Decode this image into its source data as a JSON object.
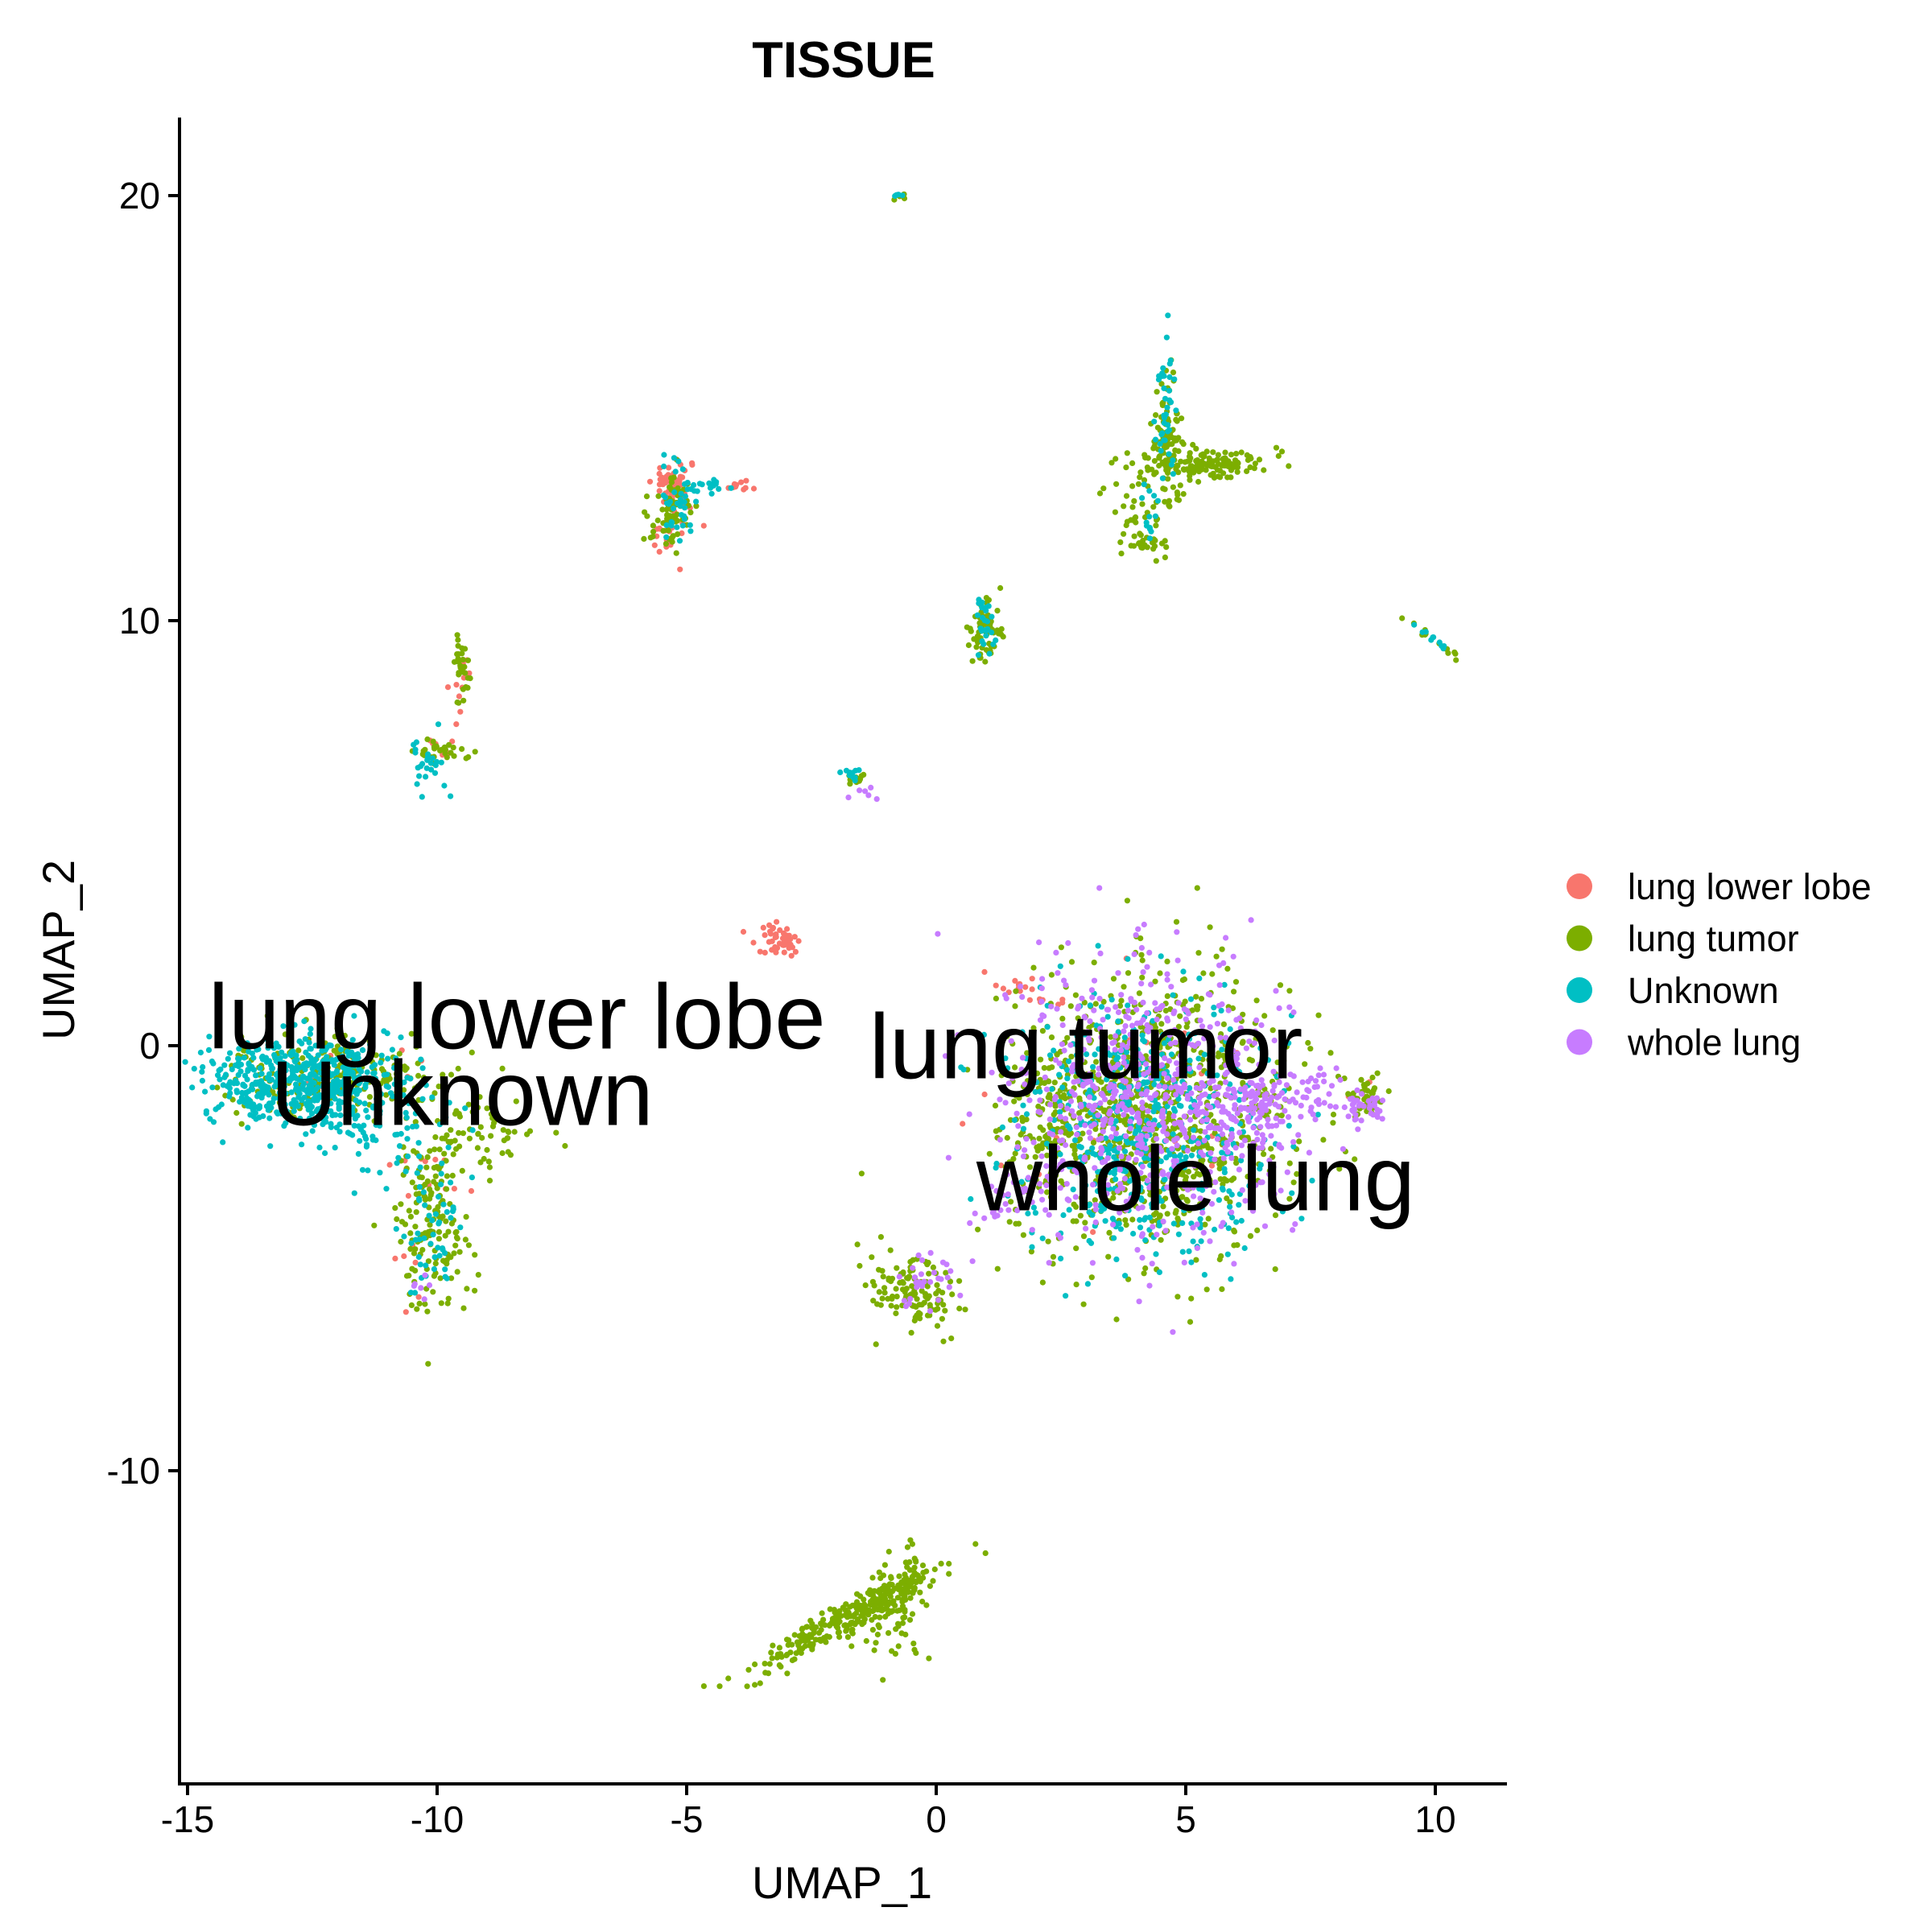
{
  "chart_data": {
    "type": "scatter",
    "title": "TISSUE",
    "xlabel": "UMAP_1",
    "ylabel": "UMAP_2",
    "xlim": [
      -15.2,
      11.5
    ],
    "ylim": [
      -17.3,
      22.0
    ],
    "xticks": [
      -15,
      -10,
      -5,
      0,
      5,
      10
    ],
    "yticks": [
      -10,
      0,
      10,
      20
    ],
    "xtick_labels": [
      "-15",
      "-10",
      "-5",
      "0",
      "5",
      "10"
    ],
    "ytick_labels": [
      "-10",
      "0",
      "10",
      "20"
    ],
    "grid": false,
    "legend": {
      "position": "right",
      "entries": [
        {
          "label": "lung lower lobe",
          "color": "#F8766D"
        },
        {
          "label": "lung tumor",
          "color": "#7CAE00"
        },
        {
          "label": "Unknown",
          "color": "#00BFC4"
        },
        {
          "label": "whole lung",
          "color": "#C77CFF"
        }
      ]
    },
    "annotations": [
      {
        "text": "lung lower lobe",
        "x": -8.4,
        "y": 0.5
      },
      {
        "text": "Unknown",
        "x": -9.5,
        "y": -1.3
      },
      {
        "text": "lung tumor",
        "x": 3.0,
        "y": -0.2
      },
      {
        "text": "whole lung",
        "x": 5.2,
        "y": -3.3
      }
    ],
    "series": [
      {
        "name": "lung lower lobe",
        "color": "#F8766D",
        "clusters": [
          {
            "x": -3.2,
            "y": 2.5,
            "sx": 0.2,
            "sy": 0.25,
            "n": 45,
            "angle": 30
          },
          {
            "x": 1.8,
            "y": 1.3,
            "sx": 0.4,
            "sy": 0.12,
            "n": 20,
            "angle": -25
          },
          {
            "x": -5.3,
            "y": 13.2,
            "sx": 0.2,
            "sy": 0.3,
            "n": 60
          },
          {
            "x": -4.0,
            "y": 13.2,
            "sx": 0.2,
            "sy": 0.08,
            "n": 12
          },
          {
            "x": -5.3,
            "y": 12.0,
            "sx": 0.2,
            "sy": 0.3,
            "n": 20
          },
          {
            "x": -9.5,
            "y": 8.6,
            "sx": 0.1,
            "sy": 0.4,
            "n": 12
          },
          {
            "x": -10.0,
            "y": 7.0,
            "sx": 0.2,
            "sy": 0.15,
            "n": 8
          },
          {
            "x": -12.0,
            "y": -0.5,
            "sx": 1.0,
            "sy": 0.3,
            "n": 15
          },
          {
            "x": -10.2,
            "y": -2.8,
            "sx": 0.5,
            "sy": 0.6,
            "n": 12
          },
          {
            "x": -10.4,
            "y": -5.2,
            "sx": 0.3,
            "sy": 0.5,
            "n": 6
          },
          {
            "x": 4.0,
            "y": -2.0,
            "sx": 1.4,
            "sy": 1.5,
            "n": 25
          },
          {
            "x": 8.6,
            "y": -1.2,
            "sx": 0.15,
            "sy": 0.2,
            "n": 4
          }
        ]
      },
      {
        "name": "lung tumor",
        "color": "#7CAE00",
        "clusters": [
          {
            "x": -12.0,
            "y": -0.7,
            "sx": 1.3,
            "sy": 0.5,
            "n": 220
          },
          {
            "x": -9.2,
            "y": -2.0,
            "sx": 0.6,
            "sy": 0.4,
            "n": 60
          },
          {
            "x": -10.1,
            "y": -4.2,
            "sx": 0.4,
            "sy": 1.0,
            "n": 150
          },
          {
            "x": 4.3,
            "y": -1.6,
            "sx": 1.4,
            "sy": 1.6,
            "n": 900
          },
          {
            "x": 2.3,
            "y": -1.8,
            "sx": 0.4,
            "sy": 0.8,
            "n": 80
          },
          {
            "x": 8.6,
            "y": -1.2,
            "sx": 0.2,
            "sy": 0.3,
            "n": 40
          },
          {
            "x": -0.5,
            "y": -5.8,
            "sx": 0.4,
            "sy": 0.6,
            "n": 120,
            "angle": 35
          },
          {
            "x": -1.8,
            "y": -13.5,
            "sx": 1.2,
            "sy": 0.18,
            "n": 260,
            "angle": 33
          },
          {
            "x": -0.9,
            "y": -13.3,
            "sx": 0.35,
            "sy": 0.5,
            "n": 80
          },
          {
            "x": -0.5,
            "y": -12.3,
            "sx": 0.1,
            "sy": 0.35,
            "n": 25
          },
          {
            "x": -5.3,
            "y": 12.5,
            "sx": 0.22,
            "sy": 0.45,
            "n": 70
          },
          {
            "x": -9.5,
            "y": 8.8,
            "sx": 0.1,
            "sy": 0.4,
            "n": 30
          },
          {
            "x": -9.8,
            "y": 6.9,
            "sx": 0.3,
            "sy": 0.12,
            "n": 30
          },
          {
            "x": 1.0,
            "y": 9.8,
            "sx": 0.15,
            "sy": 0.35,
            "n": 60
          },
          {
            "x": 4.6,
            "y": 14.2,
            "sx": 0.15,
            "sy": 0.8,
            "n": 90
          },
          {
            "x": 5.5,
            "y": 13.7,
            "sx": 0.6,
            "sy": 0.18,
            "n": 140
          },
          {
            "x": 4.0,
            "y": 12.7,
            "sx": 0.3,
            "sy": 0.6,
            "n": 40,
            "angle": 20
          },
          {
            "x": 4.1,
            "y": 11.8,
            "sx": 0.2,
            "sy": 0.1,
            "n": 20
          },
          {
            "x": 9.9,
            "y": 9.6,
            "sx": 0.35,
            "sy": 0.05,
            "n": 15,
            "angle": -40
          },
          {
            "x": -1.6,
            "y": 6.3,
            "sx": 0.15,
            "sy": 0.1,
            "n": 15
          },
          {
            "x": -0.7,
            "y": 20.0,
            "sx": 0.1,
            "sy": 0.05,
            "n": 5
          }
        ]
      },
      {
        "name": "Unknown",
        "color": "#00BFC4",
        "clusters": [
          {
            "x": -12.8,
            "y": -0.8,
            "sx": 0.9,
            "sy": 0.5,
            "n": 520
          },
          {
            "x": -11.0,
            "y": -1.8,
            "sx": 0.8,
            "sy": 0.6,
            "n": 90
          },
          {
            "x": -10.1,
            "y": -4.5,
            "sx": 0.3,
            "sy": 0.8,
            "n": 50
          },
          {
            "x": 4.2,
            "y": -1.8,
            "sx": 1.3,
            "sy": 1.5,
            "n": 500
          },
          {
            "x": 1.0,
            "y": 10.0,
            "sx": 0.1,
            "sy": 0.3,
            "n": 25
          },
          {
            "x": 4.6,
            "y": 14.8,
            "sx": 0.1,
            "sy": 0.8,
            "n": 40
          },
          {
            "x": 4.3,
            "y": 12.5,
            "sx": 0.1,
            "sy": 0.4,
            "n": 12
          },
          {
            "x": -5.2,
            "y": 12.8,
            "sx": 0.2,
            "sy": 0.4,
            "n": 40
          },
          {
            "x": -4.6,
            "y": 13.2,
            "sx": 0.3,
            "sy": 0.1,
            "n": 15
          },
          {
            "x": -10.2,
            "y": 6.6,
            "sx": 0.2,
            "sy": 0.35,
            "n": 25
          },
          {
            "x": -1.7,
            "y": 6.4,
            "sx": 0.1,
            "sy": 0.1,
            "n": 10
          },
          {
            "x": 9.9,
            "y": 9.6,
            "sx": 0.3,
            "sy": 0.05,
            "n": 10,
            "angle": -40
          },
          {
            "x": -0.7,
            "y": 20.0,
            "sx": 0.1,
            "sy": 0.05,
            "n": 4
          }
        ]
      },
      {
        "name": "whole lung",
        "color": "#C77CFF",
        "clusters": [
          {
            "x": 4.2,
            "y": -1.3,
            "sx": 1.4,
            "sy": 1.6,
            "n": 650
          },
          {
            "x": 6.3,
            "y": -1.5,
            "sx": 0.6,
            "sy": 0.5,
            "n": 110
          },
          {
            "x": 7.6,
            "y": -1.2,
            "sx": 0.6,
            "sy": 0.3,
            "n": 40
          },
          {
            "x": 8.6,
            "y": -1.5,
            "sx": 0.2,
            "sy": 0.2,
            "n": 30
          },
          {
            "x": 1.5,
            "y": -3.8,
            "sx": 0.5,
            "sy": 0.3,
            "n": 25,
            "angle": 30
          },
          {
            "x": -0.2,
            "y": -5.5,
            "sx": 0.3,
            "sy": 0.4,
            "n": 30
          },
          {
            "x": -1.4,
            "y": 6.0,
            "sx": 0.15,
            "sy": 0.1,
            "n": 6
          },
          {
            "x": -10.3,
            "y": -5.6,
            "sx": 0.15,
            "sy": 0.2,
            "n": 6
          }
        ]
      }
    ]
  }
}
